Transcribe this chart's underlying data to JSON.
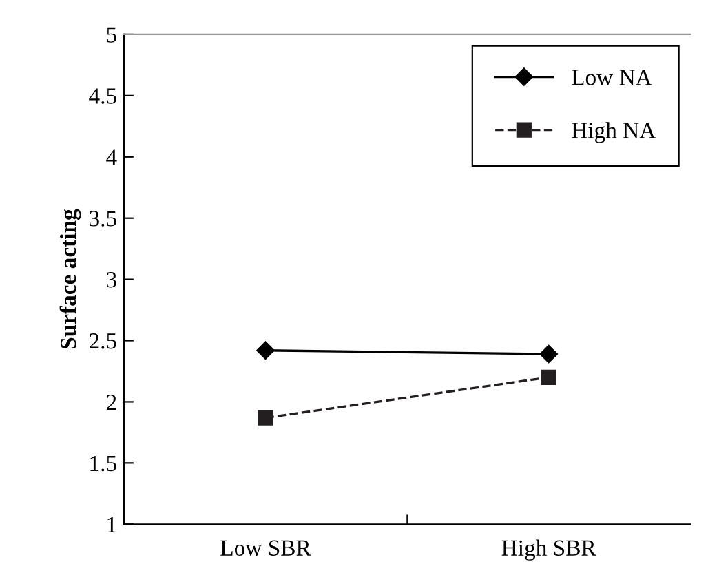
{
  "chart_data": {
    "type": "line",
    "ylabel": "Surface acting",
    "categories": [
      "Low SBR",
      "High SBR"
    ],
    "series": [
      {
        "name": "Low NA",
        "color": "#000000",
        "values": [
          2.42,
          2.39
        ],
        "marker": "diamond",
        "line_style": "solid"
      },
      {
        "name": "High NA",
        "color": "#231f20",
        "values": [
          1.87,
          2.2
        ],
        "marker": "square",
        "line_style": "dashed"
      }
    ],
    "ylim": [
      1,
      5
    ],
    "yticks": [
      1,
      1.5,
      2,
      2.5,
      3,
      3.5,
      4,
      4.5,
      5
    ],
    "grid": false,
    "legend": "top right"
  }
}
